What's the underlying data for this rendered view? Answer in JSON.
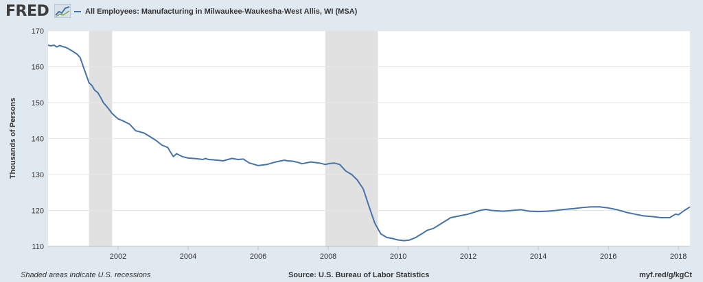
{
  "header": {
    "logo_text": "FRED",
    "logo_icon": "chart-line-icon"
  },
  "chart_data": {
    "type": "line",
    "title": "",
    "xlabel": "",
    "ylabel": "Thousands of Persons",
    "xlim": [
      2000.0,
      2018.33
    ],
    "ylim": [
      110,
      170
    ],
    "y_ticks": [
      110,
      120,
      130,
      140,
      150,
      160,
      170
    ],
    "x_ticks": [
      2002,
      2004,
      2006,
      2008,
      2010,
      2012,
      2014,
      2016,
      2018
    ],
    "grid": true,
    "legend_position": "top-left",
    "recessions": [
      [
        2001.17,
        2001.83
      ],
      [
        2007.92,
        2009.42
      ]
    ],
    "series": [
      {
        "name": "All Employees: Manufacturing in Milwaukee-Waukesha-West Allis, WI (MSA)",
        "color": "#4572a7",
        "x": [
          2000.0,
          2000.08,
          2000.17,
          2000.25,
          2000.33,
          2000.42,
          2000.5,
          2000.58,
          2000.67,
          2000.75,
          2000.83,
          2000.92,
          2001.0,
          2001.08,
          2001.17,
          2001.25,
          2001.33,
          2001.42,
          2001.5,
          2001.58,
          2001.67,
          2001.75,
          2001.83,
          2001.92,
          2002.0,
          2002.17,
          2002.33,
          2002.5,
          2002.58,
          2002.75,
          2002.92,
          2003.08,
          2003.25,
          2003.42,
          2003.5,
          2003.58,
          2003.67,
          2003.83,
          2004.0,
          2004.25,
          2004.42,
          2004.5,
          2004.58,
          2004.83,
          2005.0,
          2005.25,
          2005.42,
          2005.58,
          2005.75,
          2005.83,
          2006.0,
          2006.25,
          2006.5,
          2006.75,
          2006.83,
          2007.0,
          2007.17,
          2007.25,
          2007.5,
          2007.75,
          2007.92,
          2008.0,
          2008.17,
          2008.33,
          2008.5,
          2008.67,
          2008.83,
          2009.0,
          2009.17,
          2009.33,
          2009.5,
          2009.67,
          2009.83,
          2010.0,
          2010.17,
          2010.33,
          2010.5,
          2010.67,
          2010.83,
          2011.0,
          2011.25,
          2011.5,
          2011.75,
          2012.0,
          2012.17,
          2012.33,
          2012.5,
          2012.67,
          2013.0,
          2013.25,
          2013.5,
          2013.75,
          2014.0,
          2014.25,
          2014.5,
          2014.75,
          2015.0,
          2015.25,
          2015.5,
          2015.75,
          2016.0,
          2016.25,
          2016.5,
          2016.75,
          2017.0,
          2017.25,
          2017.5,
          2017.75,
          2017.92,
          2018.0,
          2018.17,
          2018.33
        ],
        "y": [
          166.0,
          165.8,
          166.0,
          165.5,
          165.9,
          165.6,
          165.4,
          165.0,
          164.5,
          164.0,
          163.5,
          162.5,
          160.2,
          158.0,
          155.5,
          154.8,
          153.5,
          152.8,
          151.5,
          150.0,
          149.0,
          148.0,
          147.0,
          146.2,
          145.5,
          144.8,
          144.0,
          142.2,
          142.0,
          141.5,
          140.5,
          139.5,
          138.2,
          137.5,
          136.2,
          135.0,
          135.8,
          135.0,
          134.6,
          134.4,
          134.2,
          134.5,
          134.2,
          134.0,
          133.8,
          134.5,
          134.2,
          134.3,
          133.2,
          133.0,
          132.5,
          132.8,
          133.5,
          134.0,
          133.8,
          133.7,
          133.3,
          133.0,
          133.5,
          133.2,
          132.8,
          133.0,
          133.2,
          132.8,
          131.0,
          130.0,
          128.5,
          126.0,
          121.0,
          116.5,
          113.5,
          112.5,
          112.2,
          111.8,
          111.6,
          111.8,
          112.5,
          113.5,
          114.5,
          115.0,
          116.5,
          118.0,
          118.5,
          119.0,
          119.5,
          120.0,
          120.3,
          120.0,
          119.8,
          120.0,
          120.2,
          119.8,
          119.7,
          119.8,
          120.0,
          120.3,
          120.5,
          120.8,
          121.0,
          121.0,
          120.7,
          120.2,
          119.5,
          119.0,
          118.5,
          118.3,
          118.0,
          118.0,
          119.0,
          118.8,
          120.0,
          121.0
        ]
      }
    ]
  },
  "footer": {
    "note": "Shaded areas indicate U.S. recessions",
    "source": "Source: U.S. Bureau of Labor Statistics",
    "link": "myf.red/g/kgCt"
  }
}
